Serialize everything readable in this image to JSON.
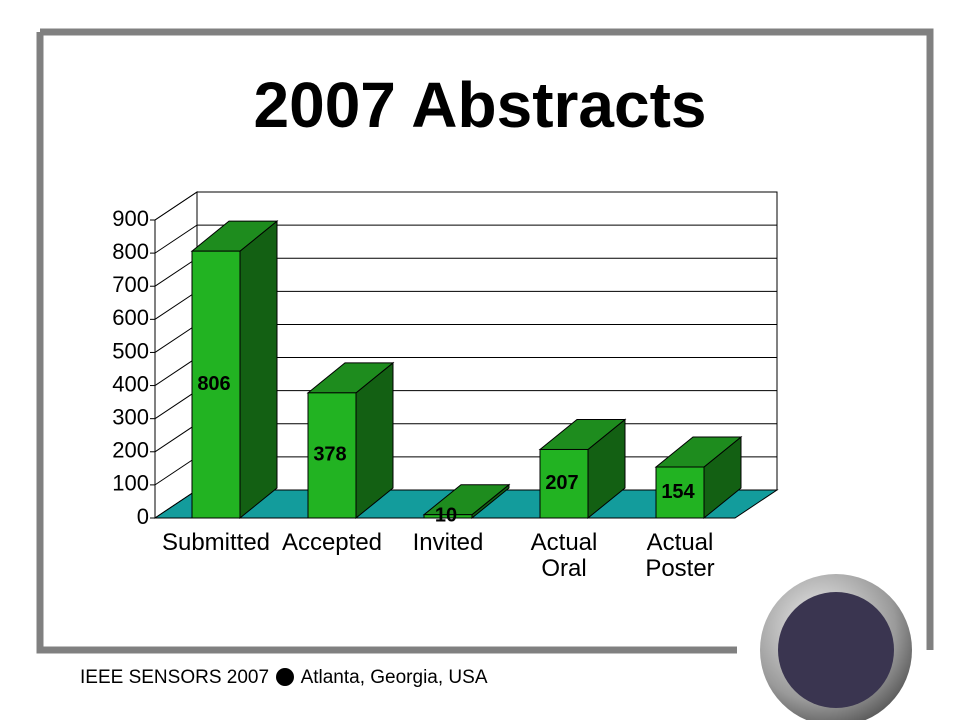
{
  "chart_data": {
    "type": "bar3d",
    "title": "2007 Abstracts",
    "categories": [
      "Submitted",
      "Accepted",
      "Invited",
      "Actual Oral",
      "Actual Poster"
    ],
    "values": [
      806,
      378,
      10,
      207,
      154
    ],
    "color": "#22b322",
    "ylim": [
      0,
      900
    ],
    "yticks": [
      0,
      100,
      200,
      300,
      400,
      500,
      600,
      700,
      800,
      900
    ],
    "grid": true
  },
  "footer": {
    "event": "IEEE SENSORS 2007",
    "location": "Atlanta, Georgia, USA"
  }
}
